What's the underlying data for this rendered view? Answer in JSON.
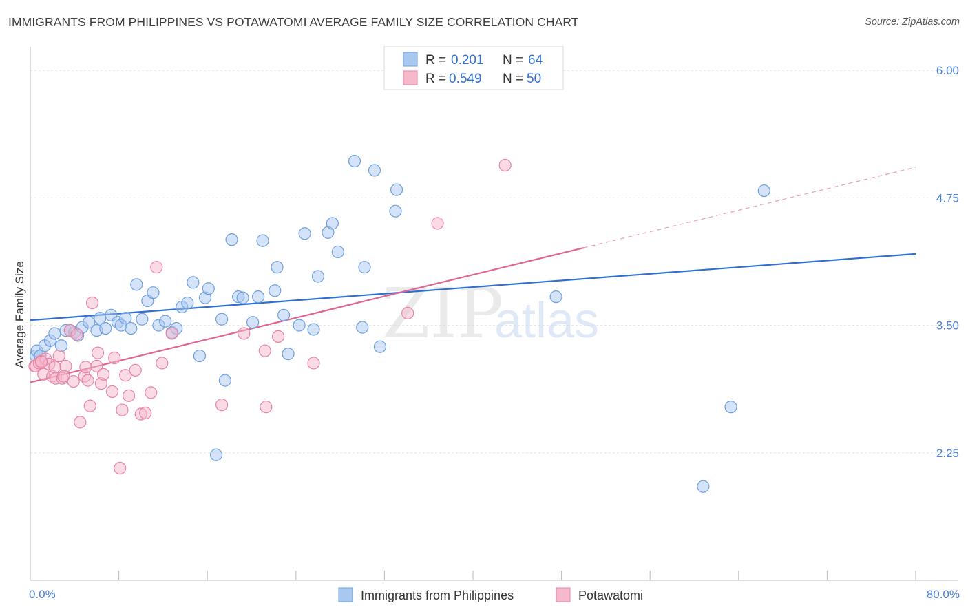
{
  "header": {
    "title": "IMMIGRANTS FROM PHILIPPINES VS POTAWATOMI AVERAGE FAMILY SIZE CORRELATION CHART",
    "source": "Source: ZipAtlas.com"
  },
  "watermark": {
    "zip": "ZIP",
    "atlas": "atlas"
  },
  "legend": {
    "rows": [
      {
        "r_label": "R =",
        "r_value": "0.201",
        "n_label": "N =",
        "n_value": "64",
        "color": "#a9c8f0",
        "stroke": "#6d9fe0"
      },
      {
        "r_label": "R =",
        "r_value": "0.549",
        "n_label": "N =",
        "n_value": "50",
        "color": "#f6b8cb",
        "stroke": "#e883a4"
      }
    ]
  },
  "chart_data": {
    "type": "scatter",
    "title": "IMMIGRANTS FROM PHILIPPINES VS POTAWATOMI AVERAGE FAMILY SIZE CORRELATION CHART",
    "xlabel": "",
    "ylabel": "Average Family Size",
    "xlim": [
      0,
      80
    ],
    "ylim": [
      1.0,
      6.15
    ],
    "x_tick_labels": [
      "0.0%",
      "80.0%"
    ],
    "y_ticks": [
      2.25,
      3.5,
      4.75,
      6.0
    ],
    "y_tick_labels": [
      "2.25",
      "3.50",
      "4.75",
      "6.00"
    ],
    "grid": true,
    "legend_position": "bottom",
    "series": [
      {
        "name": "Immigrants from Philippines",
        "color": "#a9c8f0",
        "stroke": "#6d9fe0",
        "trend": {
          "x": [
            0,
            80
          ],
          "y": [
            3.55,
            4.2
          ],
          "color": "#2e6fd3"
        },
        "points": [
          [
            0.5,
            3.2
          ],
          [
            0.6,
            3.25
          ],
          [
            0.9,
            3.2
          ],
          [
            1.3,
            3.3
          ],
          [
            1.8,
            3.35
          ],
          [
            2.2,
            3.42
          ],
          [
            2.8,
            3.3
          ],
          [
            3.2,
            3.45
          ],
          [
            3.6,
            3.45
          ],
          [
            4.0,
            3.43
          ],
          [
            4.3,
            3.4
          ],
          [
            4.7,
            3.48
          ],
          [
            5.3,
            3.53
          ],
          [
            6.0,
            3.45
          ],
          [
            6.3,
            3.57
          ],
          [
            6.8,
            3.47
          ],
          [
            7.3,
            3.6
          ],
          [
            7.9,
            3.53
          ],
          [
            8.2,
            3.5
          ],
          [
            8.6,
            3.57
          ],
          [
            9.1,
            3.47
          ],
          [
            9.6,
            3.9
          ],
          [
            10.1,
            3.56
          ],
          [
            10.6,
            3.74
          ],
          [
            11.1,
            3.82
          ],
          [
            11.6,
            3.5
          ],
          [
            12.2,
            3.54
          ],
          [
            12.8,
            3.43
          ],
          [
            13.2,
            3.47
          ],
          [
            13.7,
            3.68
          ],
          [
            14.2,
            3.72
          ],
          [
            14.7,
            3.92
          ],
          [
            15.3,
            3.2
          ],
          [
            15.8,
            3.77
          ],
          [
            16.1,
            3.86
          ],
          [
            16.8,
            2.23
          ],
          [
            17.3,
            3.56
          ],
          [
            17.6,
            2.96
          ],
          [
            18.2,
            4.34
          ],
          [
            18.8,
            3.78
          ],
          [
            19.2,
            3.77
          ],
          [
            20.1,
            3.53
          ],
          [
            20.6,
            3.78
          ],
          [
            21.0,
            4.33
          ],
          [
            22.1,
            3.84
          ],
          [
            22.3,
            4.07
          ],
          [
            22.9,
            3.6
          ],
          [
            23.3,
            3.22
          ],
          [
            24.3,
            3.5
          ],
          [
            24.8,
            4.4
          ],
          [
            25.6,
            3.46
          ],
          [
            26.0,
            3.98
          ],
          [
            26.9,
            4.41
          ],
          [
            27.3,
            4.5
          ],
          [
            27.8,
            4.22
          ],
          [
            29.3,
            5.11
          ],
          [
            30.0,
            3.48
          ],
          [
            30.2,
            4.07
          ],
          [
            31.1,
            5.02
          ],
          [
            31.6,
            3.29
          ],
          [
            33.0,
            4.62
          ],
          [
            33.1,
            4.83
          ],
          [
            47.5,
            3.78
          ],
          [
            63.3,
            2.7
          ],
          [
            66.3,
            4.82
          ],
          [
            60.8,
            1.92
          ]
        ]
      },
      {
        "name": "Potawatomi",
        "color": "#f6b8cb",
        "stroke": "#e883a4",
        "trend_solid": {
          "x": [
            0,
            50
          ],
          "y": [
            2.94,
            4.26
          ],
          "color": "#e06494"
        },
        "trend_dashed": {
          "x": [
            50,
            80
          ],
          "y": [
            4.26,
            5.05
          ],
          "color": "#e8a0b8"
        },
        "points": [
          [
            0.4,
            3.1
          ],
          [
            0.5,
            3.1
          ],
          [
            0.8,
            3.13
          ],
          [
            1.0,
            3.15
          ],
          [
            1.2,
            3.02
          ],
          [
            1.4,
            3.17
          ],
          [
            1.7,
            3.12
          ],
          [
            2.0,
            3.0
          ],
          [
            2.3,
            2.98
          ],
          [
            2.6,
            3.2
          ],
          [
            2.9,
            2.98
          ],
          [
            3.2,
            3.1
          ],
          [
            3.6,
            3.45
          ],
          [
            3.9,
            2.95
          ],
          [
            4.2,
            3.41
          ],
          [
            4.5,
            2.55
          ],
          [
            4.9,
            3.0
          ],
          [
            5.0,
            3.09
          ],
          [
            5.2,
            2.96
          ],
          [
            5.4,
            2.71
          ],
          [
            5.6,
            3.72
          ],
          [
            6.0,
            3.1
          ],
          [
            6.1,
            3.23
          ],
          [
            6.4,
            2.93
          ],
          [
            6.6,
            3.02
          ],
          [
            7.4,
            2.85
          ],
          [
            7.6,
            3.18
          ],
          [
            8.1,
            2.1
          ],
          [
            8.3,
            2.67
          ],
          [
            8.6,
            3.01
          ],
          [
            8.9,
            2.81
          ],
          [
            9.5,
            3.06
          ],
          [
            10.0,
            2.63
          ],
          [
            10.4,
            2.64
          ],
          [
            10.9,
            2.84
          ],
          [
            11.4,
            4.07
          ],
          [
            11.9,
            3.13
          ],
          [
            12.8,
            3.42
          ],
          [
            17.3,
            2.72
          ],
          [
            19.3,
            3.42
          ],
          [
            21.2,
            3.25
          ],
          [
            21.3,
            2.7
          ],
          [
            22.4,
            3.39
          ],
          [
            25.6,
            3.13
          ],
          [
            34.1,
            3.62
          ],
          [
            36.8,
            4.5
          ],
          [
            42.9,
            5.07
          ],
          [
            1.0,
            3.14
          ],
          [
            2.2,
            3.09
          ],
          [
            3.0,
            3.0
          ]
        ]
      }
    ]
  }
}
